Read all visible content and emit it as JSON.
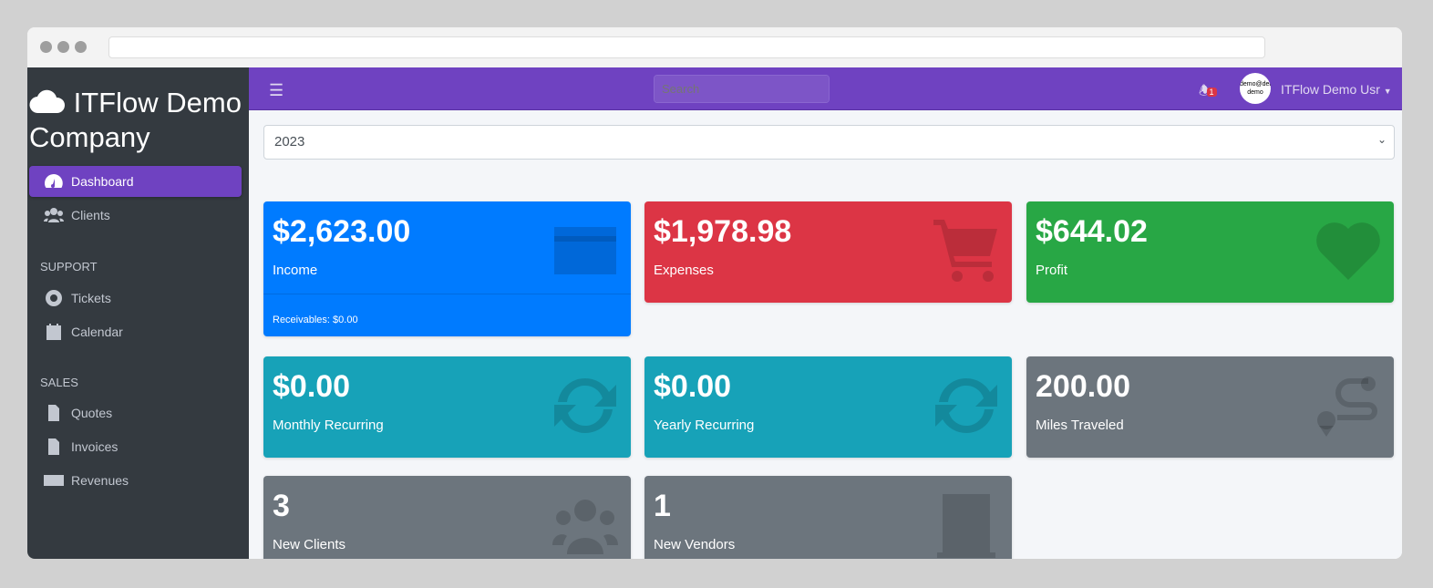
{
  "brand": {
    "name": "ITFlow Demo Company",
    "icon": "cloud-icon"
  },
  "sidebar": {
    "items": [
      {
        "label": "Dashboard",
        "icon": "gauge-icon",
        "active": true
      },
      {
        "label": "Clients",
        "icon": "users-icon"
      }
    ],
    "support_header": "SUPPORT",
    "support": [
      {
        "label": "Tickets",
        "icon": "life-ring-icon"
      },
      {
        "label": "Calendar",
        "icon": "calendar-icon"
      }
    ],
    "sales_header": "SALES",
    "sales": [
      {
        "label": "Quotes",
        "icon": "file-icon"
      },
      {
        "label": "Invoices",
        "icon": "invoice-icon"
      },
      {
        "label": "Revenues",
        "icon": "credit-card-icon"
      }
    ]
  },
  "topbar": {
    "search_placeholder": "Search",
    "notifications": "1",
    "avatar_text": "demo@demo demo",
    "user": "ITFlow Demo Usr"
  },
  "year_select": "2023",
  "cards": [
    {
      "value": "$2,623.00",
      "label": "Income",
      "footer": "Receivables: $0.00",
      "color": "#007bff",
      "icon": "credit-card-icon"
    },
    {
      "value": "$1,978.98",
      "label": "Expenses",
      "color": "#dc3545",
      "icon": "shopping-cart-icon"
    },
    {
      "value": "$644.02",
      "label": "Profit",
      "color": "#28a745",
      "icon": "heart-icon"
    },
    {
      "value": "$0.00",
      "label": "Monthly Recurring",
      "color": "#17a2b8",
      "icon": "sync-icon"
    },
    {
      "value": "$0.00",
      "label": "Yearly Recurring",
      "color": "#17a2b8",
      "icon": "sync-icon"
    },
    {
      "value": "200.00",
      "label": "Miles Traveled",
      "color": "#6c757d",
      "icon": "route-icon"
    },
    {
      "value": "3",
      "label": "New Clients",
      "color": "#6c757d",
      "icon": "users-icon"
    },
    {
      "value": "1",
      "label": "New Vendors",
      "color": "#6c757d",
      "icon": "building-icon"
    }
  ]
}
